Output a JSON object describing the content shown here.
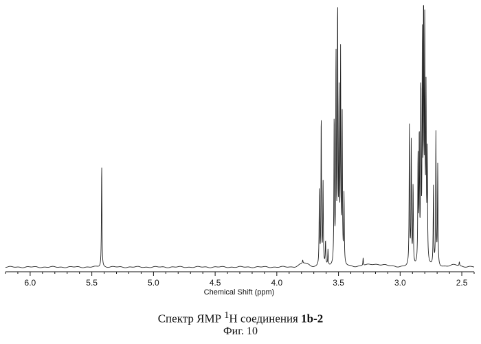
{
  "chart_data": {
    "type": "line",
    "xlabel": "Chemical Shift (ppm)",
    "xlim": [
      6.2,
      2.4
    ],
    "x_reversed": true,
    "ylim": [
      0,
      100
    ],
    "grid": false,
    "ticks": [
      "6.0",
      "5.5",
      "5.0",
      "4.5",
      "4.0",
      "3.5",
      "3.0",
      "2.5"
    ],
    "peaks": [
      {
        "x": 5.42,
        "y": 39
      },
      {
        "x": 3.79,
        "y": 1.2
      },
      {
        "x": 3.655,
        "y": 29
      },
      {
        "x": 3.64,
        "y": 57
      },
      {
        "x": 3.625,
        "y": 31
      },
      {
        "x": 3.605,
        "y": 9
      },
      {
        "x": 3.585,
        "y": 6
      },
      {
        "x": 3.535,
        "y": 56
      },
      {
        "x": 3.52,
        "y": 79
      },
      {
        "x": 3.507,
        "y": 97
      },
      {
        "x": 3.495,
        "y": 62
      },
      {
        "x": 3.483,
        "y": 78
      },
      {
        "x": 3.47,
        "y": 55
      },
      {
        "x": 3.455,
        "y": 26
      },
      {
        "x": 3.3,
        "y": 3
      },
      {
        "x": 2.925,
        "y": 53
      },
      {
        "x": 2.91,
        "y": 46
      },
      {
        "x": 2.895,
        "y": 30
      },
      {
        "x": 2.855,
        "y": 40
      },
      {
        "x": 2.845,
        "y": 48
      },
      {
        "x": 2.832,
        "y": 66
      },
      {
        "x": 2.82,
        "y": 84
      },
      {
        "x": 2.81,
        "y": 98
      },
      {
        "x": 2.8,
        "y": 88
      },
      {
        "x": 2.79,
        "y": 62
      },
      {
        "x": 2.78,
        "y": 40
      },
      {
        "x": 2.73,
        "y": 30
      },
      {
        "x": 2.71,
        "y": 50
      },
      {
        "x": 2.695,
        "y": 38
      },
      {
        "x": 2.52,
        "y": 1.5
      }
    ]
  },
  "caption": {
    "text": "Спектр ЯМР ",
    "superscript": "1",
    "nucleus": "H соединения ",
    "compound": "1b-2"
  },
  "figure_label": "Фиг. 10"
}
